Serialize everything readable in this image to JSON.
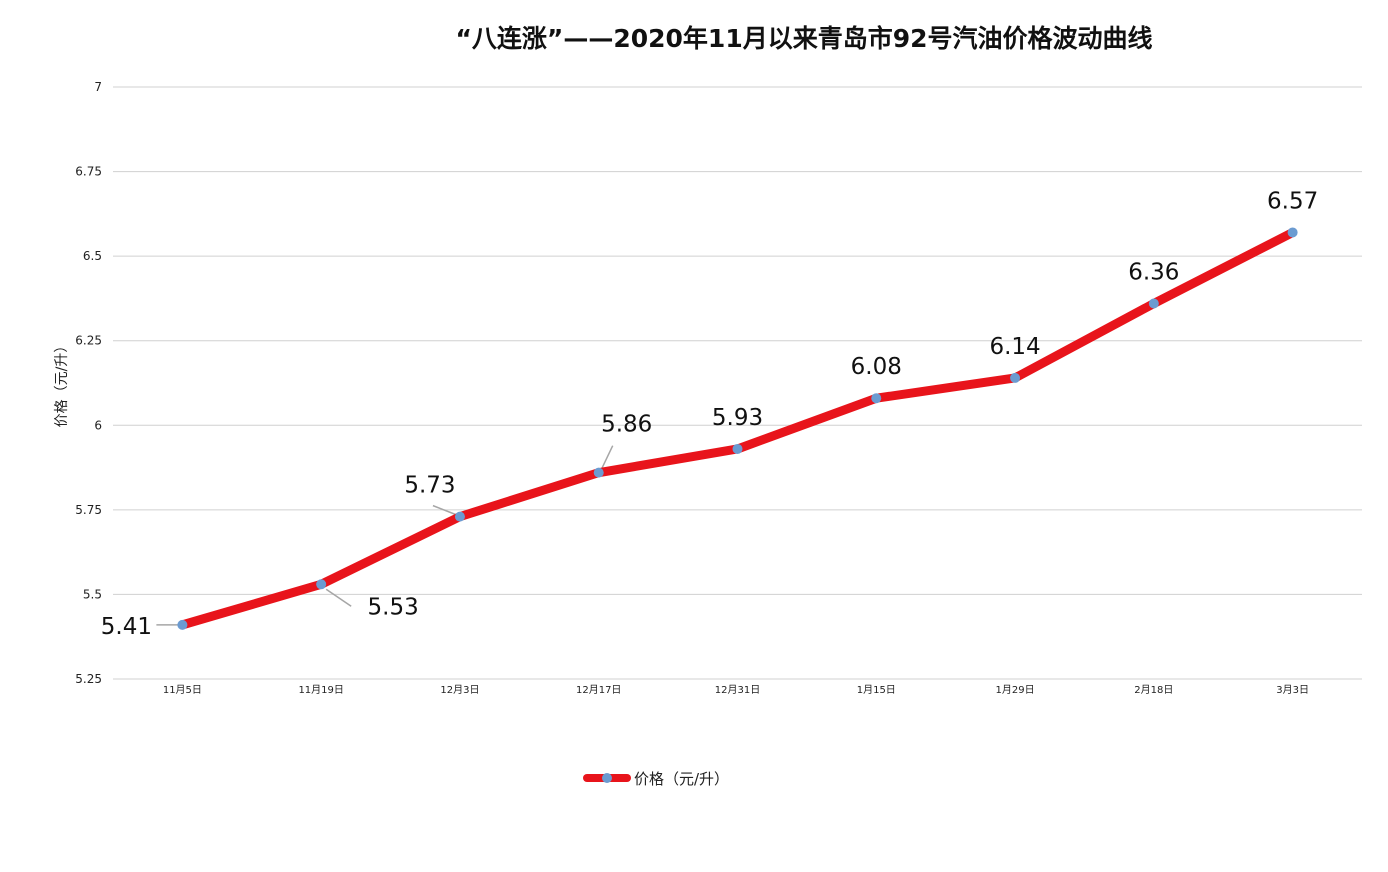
{
  "chart_data": {
    "type": "line",
    "title": "“八连涨”——2020年11月以来青岛市92号汽油价格波动曲线",
    "xlabel": "",
    "ylabel": "价格（元/升）",
    "ylim": [
      5.25,
      7
    ],
    "yticks": [
      "5.25",
      "5.5",
      "5.75",
      "6",
      "6.25",
      "6.5",
      "6.75",
      "7"
    ],
    "grid": true,
    "legend_position": "bottom",
    "categories": [
      "11月5日",
      "11月19日",
      "12月3日",
      "12月17日",
      "12月31日",
      "1月15日",
      "1月29日",
      "2月18日",
      "3月3日"
    ],
    "series": [
      {
        "name": "价格（元/升）",
        "values": [
          5.41,
          5.53,
          5.73,
          5.86,
          5.93,
          6.08,
          6.14,
          6.36,
          6.57
        ],
        "labels": [
          "5.41",
          "5.53",
          "5.73",
          "5.86",
          "5.93",
          "6.08",
          "6.14",
          "6.36",
          "6.57"
        ],
        "line_color": "#e8141b",
        "marker_color": "#6b9bd1"
      }
    ]
  }
}
